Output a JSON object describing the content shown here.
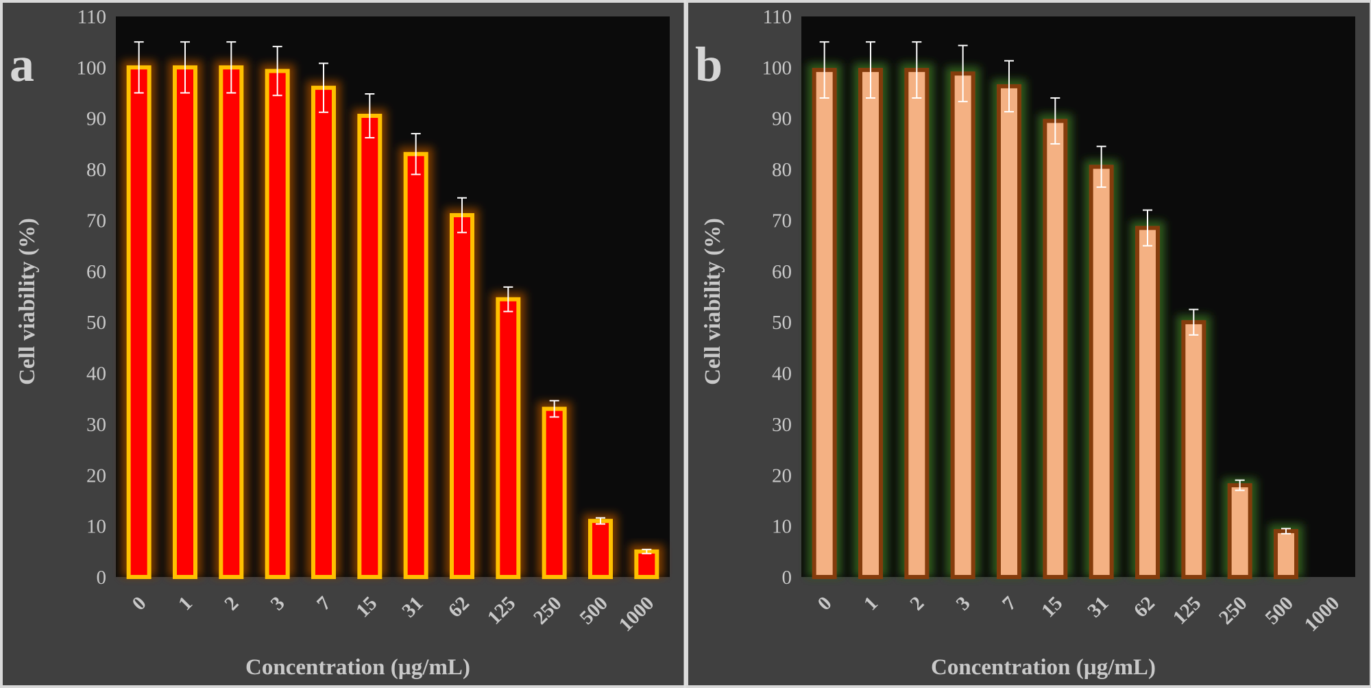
{
  "chart_data": [
    {
      "type": "bar",
      "panel_label": "a",
      "xlabel": "Concentration (µg/mL)",
      "ylabel": "Cell viability (%)",
      "ylim": [
        0,
        110
      ],
      "yticks": [
        0,
        10,
        20,
        30,
        40,
        50,
        60,
        70,
        80,
        90,
        100,
        110
      ],
      "categories": [
        "0",
        "1",
        "2",
        "3",
        "7",
        "15",
        "31",
        "62",
        "125",
        "250",
        "500",
        "1000"
      ],
      "values": [
        100,
        100,
        100,
        99.3,
        96,
        90.5,
        83,
        71,
        54.5,
        33,
        11,
        5
      ],
      "errors": [
        5,
        5,
        5,
        4.8,
        4.8,
        4.3,
        4,
        3.4,
        2.4,
        1.6,
        0.6,
        0.4
      ],
      "colors": {
        "fill": "#ff0000",
        "border": "#ffc000",
        "glow": "#7a3a00",
        "error_bar": "#ffffff",
        "plot_bg": "#0b0b0b",
        "panel_bg": "#404040"
      },
      "grid": false
    },
    {
      "type": "bar",
      "panel_label": "b",
      "xlabel": "Concentration (µg/mL)",
      "ylabel": "Cell viability (%)",
      "ylim": [
        0,
        110
      ],
      "yticks": [
        0,
        10,
        20,
        30,
        40,
        50,
        60,
        70,
        80,
        90,
        100,
        110
      ],
      "categories": [
        "0",
        "1",
        "2",
        "3",
        "7",
        "15",
        "31",
        "62",
        "125",
        "250",
        "500",
        "1000"
      ],
      "values": [
        99.5,
        99.5,
        99.5,
        98.8,
        96.3,
        89.5,
        80.5,
        68.5,
        50,
        18,
        9,
        null
      ],
      "errors": [
        5.5,
        5.5,
        5.5,
        5.5,
        5,
        4.5,
        4,
        3.5,
        2.5,
        1,
        0.5,
        null
      ],
      "colors": {
        "fill": "#f4b183",
        "border": "#843c0c",
        "glow": "#2e5a1a",
        "error_bar": "#ffffff",
        "plot_bg": "#0b0b0b",
        "panel_bg": "#404040"
      },
      "grid": false
    }
  ]
}
